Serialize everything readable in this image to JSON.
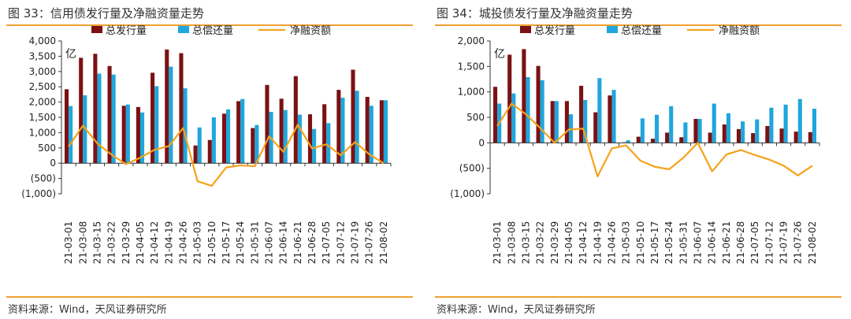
{
  "panels": [
    {
      "title": "图 33：信用债发行量及净融资量走势",
      "source": "资料来源：Wind，天风证券研究所"
    },
    {
      "title": "图 34：城投债发行量及净融资量走势",
      "source": "资料来源：Wind，天风证券研究所"
    }
  ],
  "chart_data": [
    {
      "type": "bar",
      "unit_label": "亿",
      "title": "",
      "ylim": [
        -1000,
        4000
      ],
      "yticks": [
        -1000,
        -500,
        0,
        500,
        1000,
        1500,
        2000,
        2500,
        3000,
        3500,
        4000
      ],
      "ytick_labels": [
        "(1,000)",
        "(500)",
        "0",
        "500",
        "1,000",
        "1,500",
        "2,000",
        "2,500",
        "3,000",
        "3,500",
        "4,000"
      ],
      "x_tick_labels": [
        "21-03-01",
        "21-03-08",
        "21-03-15",
        "21-03-22",
        "21-03-29",
        "21-04-05",
        "21-04-12",
        "21-04-19",
        "21-04-26",
        "21-05-03",
        "21-05-10",
        "21-05-17",
        "21-05-24",
        "21-05-31",
        "21-06-07",
        "21-06-14",
        "21-06-21",
        "21-06-28",
        "21-07-05",
        "21-07-12",
        "21-07-19",
        "21-07-26",
        "21-08-02"
      ],
      "categories": [
        "21-03-01",
        "21-03-08",
        "21-03-15",
        "21-03-22",
        "21-03-29",
        "21-04-05",
        "21-04-12",
        "21-04-19",
        "21-04-26",
        "21-05-03",
        "21-05-10",
        "21-05-17",
        "21-05-24",
        "21-05-31",
        "21-06-07",
        "21-06-14",
        "21-06-21",
        "21-06-28",
        "21-07-05",
        "21-07-12",
        "21-07-19",
        "21-07-26",
        "21-08-02"
      ],
      "series": [
        {
          "name": "总发行量",
          "type": "bar",
          "color": "#7b1113",
          "values": [
            2420,
            3450,
            3580,
            3180,
            1880,
            1840,
            2960,
            3720,
            3600,
            580,
            760,
            1620,
            2030,
            1150,
            2560,
            2110,
            2850,
            1600,
            1930,
            2400,
            3060,
            2170,
            2060
          ]
        },
        {
          "name": "总偿还量",
          "type": "bar",
          "color": "#1fa6dc",
          "values": [
            1870,
            2220,
            2930,
            2900,
            1920,
            1660,
            2520,
            3160,
            2450,
            1170,
            1500,
            1760,
            2100,
            1250,
            1680,
            1740,
            1590,
            1120,
            1310,
            2140,
            2370,
            1880,
            2060
          ]
        },
        {
          "name": "净融资额",
          "type": "line",
          "color": "#f5a21b",
          "values": [
            550,
            1230,
            650,
            280,
            -30,
            180,
            440,
            560,
            1150,
            -590,
            -740,
            -140,
            -70,
            -100,
            880,
            370,
            1260,
            480,
            620,
            260,
            690,
            290,
            0
          ]
        }
      ]
    },
    {
      "type": "bar",
      "unit_label": "亿",
      "title": "",
      "ylim": [
        -1000,
        2000
      ],
      "yticks": [
        -1000,
        -500,
        0,
        500,
        1000,
        1500,
        2000
      ],
      "ytick_labels": [
        "(1,000)",
        "(500)",
        "0",
        "500",
        "1,000",
        "1,500",
        "2,000"
      ],
      "x_tick_labels": [
        "21-03-01",
        "21-03-08",
        "21-03-15",
        "21-03-22",
        "21-03-29",
        "21-04-05",
        "21-04-12",
        "21-04-19",
        "21-04-26",
        "21-05-03",
        "21-05-10",
        "21-05-17",
        "21-05-24",
        "21-05-31",
        "21-06-07",
        "21-06-14",
        "21-06-21",
        "21-06-28",
        "21-07-05",
        "21-07-12",
        "21-07-19",
        "21-07-26",
        "21-08-02"
      ],
      "categories": [
        "21-03-01",
        "21-03-08",
        "21-03-15",
        "21-03-22",
        "21-03-29",
        "21-04-05",
        "21-04-12",
        "21-04-19",
        "21-04-26",
        "21-05-03",
        "21-05-10",
        "21-05-17",
        "21-05-24",
        "21-05-31",
        "21-06-07",
        "21-06-14",
        "21-06-21",
        "21-06-28",
        "21-07-05",
        "21-07-12",
        "21-07-19",
        "21-07-26",
        "21-08-02"
      ],
      "series": [
        {
          "name": "总发行量",
          "type": "bar",
          "color": "#7b1113",
          "values": [
            1100,
            1730,
            1840,
            1510,
            820,
            820,
            1120,
            600,
            930,
            10,
            120,
            80,
            200,
            110,
            470,
            200,
            360,
            270,
            190,
            330,
            280,
            220,
            210
          ]
        },
        {
          "name": "总偿还量",
          "type": "bar",
          "color": "#1fa6dc",
          "values": [
            770,
            970,
            1290,
            1230,
            820,
            560,
            840,
            1270,
            1040,
            50,
            480,
            550,
            720,
            400,
            470,
            770,
            580,
            420,
            460,
            690,
            750,
            860,
            670
          ]
        },
        {
          "name": "净融资额",
          "type": "line",
          "color": "#f5a21b",
          "values": [
            330,
            770,
            560,
            290,
            0,
            260,
            280,
            -660,
            -110,
            -50,
            -350,
            -470,
            -520,
            -290,
            0,
            -560,
            -230,
            -140,
            -240,
            -330,
            -450,
            -640,
            -450
          ]
        }
      ]
    }
  ]
}
